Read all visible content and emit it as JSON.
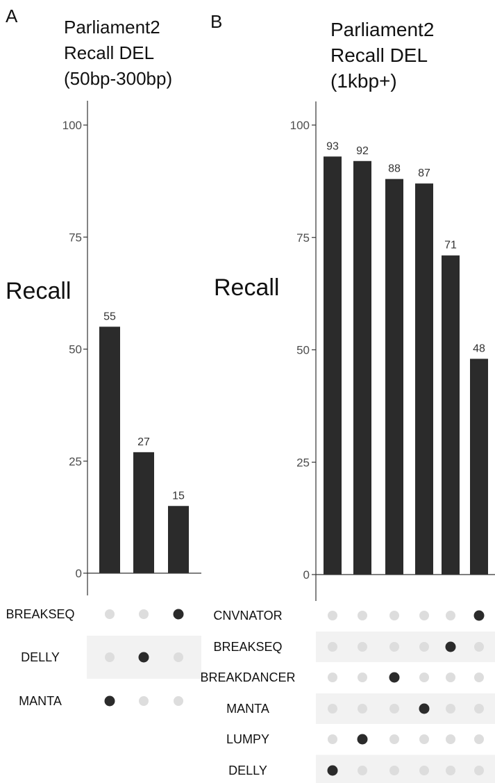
{
  "chart_data": [
    {
      "type": "bar",
      "panel_label": "A",
      "title": "Parliament2\nRecall DEL\n(50bp-300bp)",
      "ylabel": "Recall",
      "ylim": [
        0,
        100
      ],
      "yticks": [
        0,
        25,
        50,
        75,
        100
      ],
      "values": [
        55,
        27,
        15
      ],
      "bar_color": "#2b2b2b",
      "matrix": {
        "rows": [
          "BREAKSEQ",
          "DELLY",
          "MANTA"
        ],
        "active": [
          [
            0,
            0,
            1
          ],
          [
            0,
            1,
            0
          ],
          [
            1,
            0,
            0
          ]
        ]
      }
    },
    {
      "type": "bar",
      "panel_label": "B",
      "title": "Parliament2\nRecall DEL\n(1kbp+)",
      "ylabel": "Recall",
      "ylim": [
        0,
        100
      ],
      "yticks": [
        0,
        25,
        50,
        75,
        100
      ],
      "values": [
        93,
        92,
        88,
        87,
        71,
        48
      ],
      "bar_color": "#2b2b2b",
      "matrix": {
        "rows": [
          "CNVNATOR",
          "BREAKSEQ",
          "BREAKDANCER",
          "MANTA",
          "LUMPY",
          "DELLY"
        ],
        "active": [
          [
            0,
            0,
            0,
            0,
            0,
            1
          ],
          [
            0,
            0,
            0,
            0,
            1,
            0
          ],
          [
            0,
            0,
            1,
            0,
            0,
            0
          ],
          [
            0,
            0,
            0,
            1,
            0,
            0
          ],
          [
            0,
            1,
            0,
            0,
            0,
            0
          ],
          [
            1,
            0,
            0,
            0,
            0,
            0
          ]
        ]
      }
    }
  ],
  "colors": {
    "bar": "#2b2b2b",
    "dot_active": "#2b2b2b",
    "dot_inactive": "#dddddd",
    "stripe": "#f2f2f2",
    "axis": "#333333",
    "tick_text": "#4d4d4d"
  }
}
